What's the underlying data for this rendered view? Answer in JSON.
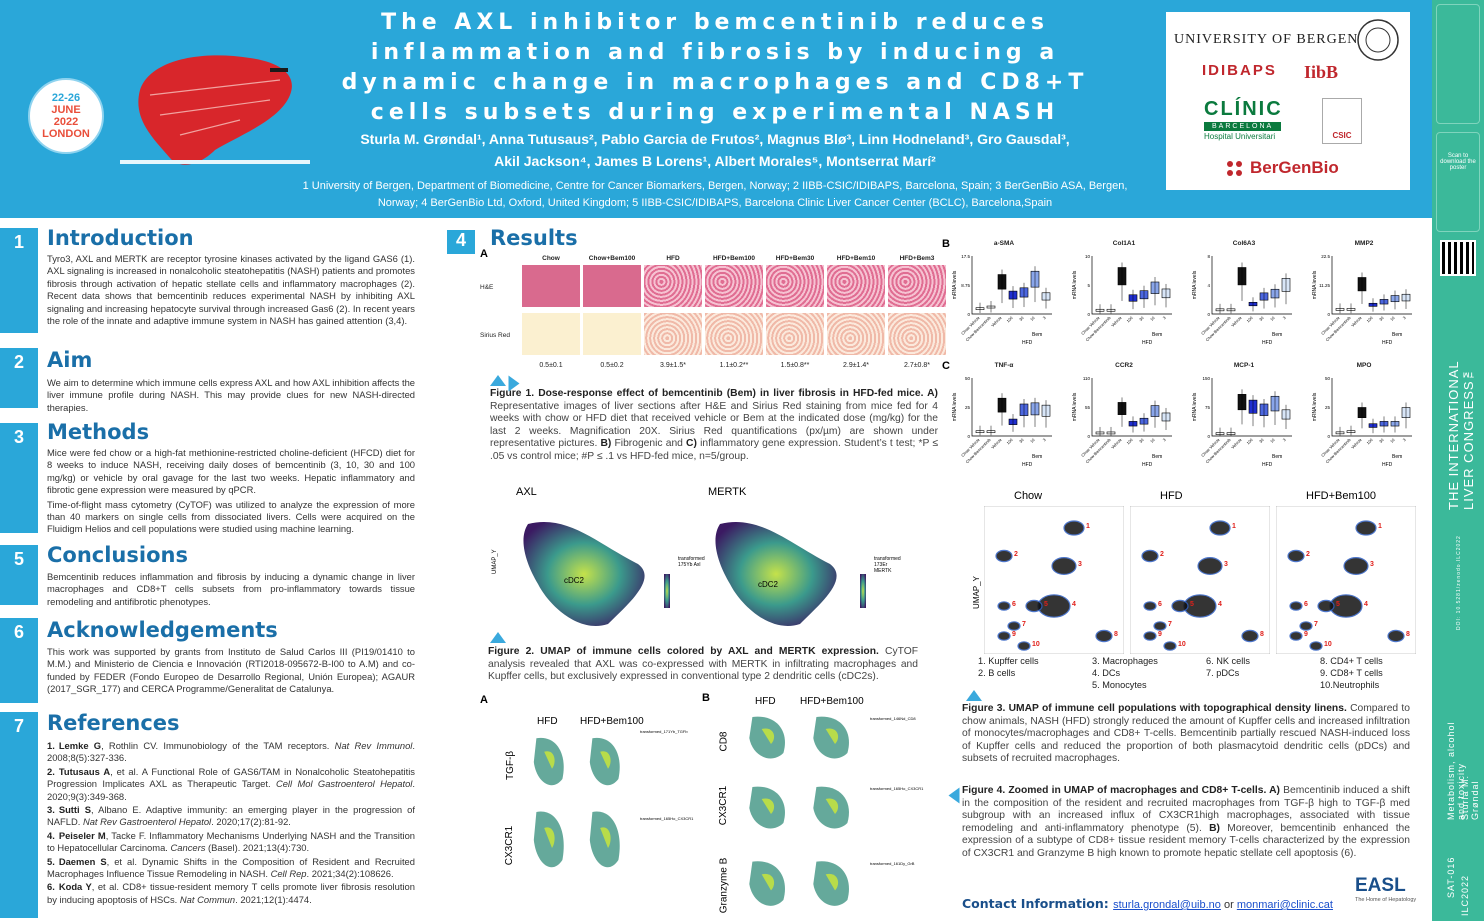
{
  "header": {
    "title_lines": [
      "The AXL inhibitor bemcentinib reduces",
      "inflammation and fibrosis by inducing a",
      "dynamic change in macrophages and CD8+T",
      "cells subsets during experimental NASH"
    ],
    "authors_line1": "Sturla M. Grøndal¹, Anna Tutusaus², Pablo Garcia de Frutos², Magnus Blø³, Linn Hodneland³, Gro Gausdal³,",
    "authors_line2": "Akil Jackson⁴, James B Lorens¹, Albert Morales⁵,  Montserrat Marí²",
    "affiliations": "1 University of Bergen, Department of Biomedicine, Centre for Cancer Biomarkers, Bergen, Norway;  2 IIBB-CSIC/IDIBAPS, Barcelona, Spain; 3 BerGenBio ASA, Bergen, Norway; 4 BerGenBio Ltd, Oxford, United Kingdom; 5 IIBB-CSIC/IDIBAPS, Barcelona Clinic Liver Cancer Center (BCLC), Barcelona,Spain",
    "conference": {
      "dates": "22-26",
      "month_year": "JUNE\n2022",
      "city": "LONDON",
      "month": "JUNE",
      "year": "2022"
    }
  },
  "logos": {
    "uib": "UNIVERSITY OF BERGEN",
    "idibaps": "IDIBAPS",
    "iibb": "IibB",
    "clinic": "CLÍNIC",
    "clinic_sub": "BARCELONA",
    "clinic_sub2": "Hospital Universitari",
    "csic": "CSIC",
    "bergenbio": "BerGenBio"
  },
  "right_strip": {
    "scan": "Scan to download the poster",
    "congress": "THE INTERNATIONAL LIVER CONGRESS™",
    "doi": "DOI: 10.5281/zenodo.ILC2022",
    "topic": "Metabolism, alcohol and toxicity",
    "author": "Sturla M. Grøndal",
    "code": "SAT-016",
    "ilc": "ILC2022"
  },
  "sections": [
    {
      "num": "1",
      "title": "Introduction",
      "body": "Tyro3, AXL and MERTK are receptor tyrosine kinases activated by the ligand GAS6 (1). AXL signaling is increased in nonalcoholic steatohepatitis (NASH) patients and promotes fibrosis through activation of hepatic stellate cells and inflammatory macrophages (2). Recent data shows that bemcentinib reduces experimental NASH by inhibiting AXL signaling and increasing hepatocyte survival through increased Gas6 (2). In recent years the role of the innate and adaptive immune system in NASH has gained attention (3,4)."
    },
    {
      "num": "2",
      "title": "Aim",
      "body": "We aim to determine which immune cells express AXL and how AXL inhibition affects the liver immune profile during NASH. This may provide clues for new NASH-directed therapies."
    },
    {
      "num": "3",
      "title": "Methods",
      "body": "Mice were fed chow or a high-fat methionine-restricted choline-deficient (HFCD) diet for 8 weeks to induce NASH, receiving daily doses of bemcentinib (3, 10, 30 and 100 mg/kg) or vehicle by oral gavage for the last two weeks. Hepatic inflammatory and fibrotic gene expression were measured by qPCR.",
      "body2": "Time-of-flight mass cytometry (CyTOF) was utilized to analyze the expression of more than 40 markers on single cells from dissociated livers. Cells were acquired on the Fluidigm Helios and cell populations were studied using machine learning."
    },
    {
      "num": "5",
      "title": "Conclusions",
      "body": "Bemcentinib reduces inflammation and fibrosis by inducing a dynamic change in liver macrophages and CD8+T cells subsets from pro-inflammatory towards tissue remodeling and antifibrotic phenotypes."
    },
    {
      "num": "6",
      "title": "Acknowledgements",
      "body": "This work was supported by grants from Instituto de Salud Carlos III (PI19/01410 to M.M.) and Ministerio de Ciencia e Innovación (RTI2018-095672-B-I00 to A.M) and co-funded by FEDER (Fondo Europeo de Desarrollo Regional, Unión Europea); AGAUR (2017_SGR_177) and CERCA Programme/Generalitat de Catalunya."
    },
    {
      "num": "7",
      "title": "References"
    }
  ],
  "references": [
    {
      "n": "1.",
      "auth": "Lemke G",
      "rest": ", Rothlin CV. Immunobiology of the TAM receptors. ",
      "jour": "Nat Rev Immunol",
      "tail": ". 2008;8(5):327-336."
    },
    {
      "n": "2.",
      "auth": "Tutusaus A",
      "rest": ", et al. A Functional Role of GAS6/TAM in Nonalcoholic Steatohepatitis Progression Implicates AXL as Therapeutic Target. ",
      "jour": "Cell Mol Gastroenterol Hepatol",
      "tail": ". 2020;9(3):349-368."
    },
    {
      "n": "3.",
      "auth": "Sutti S",
      "rest": ", Albano E. Adaptive immunity: an emerging player in the progression of NAFLD. ",
      "jour": "Nat Rev Gastroenterol Hepatol",
      "tail": ". 2020;17(2):81-92."
    },
    {
      "n": "4.",
      "auth": "Peiseler M",
      "rest": ", Tacke F. Inflammatory Mechanisms Underlying NASH and the Transition to Hepatocellular Carcinoma. ",
      "jour": "Cancers",
      "tail": " (Basel). 2021;13(4):730."
    },
    {
      "n": "5.",
      "auth": "Daemen S",
      "rest": ", et al. Dynamic Shifts in the Composition of Resident and Recruited Macrophages Influence Tissue Remodeling in NASH. ",
      "jour": "Cell Rep",
      "tail": ". 2021;34(2):108626."
    },
    {
      "n": "6.",
      "auth": "Koda Y",
      "rest": ", et al. CD8+ tissue-resident memory T cells promote liver fibrosis resolution by inducing apoptosis of HSCs. ",
      "jour": "Nat Commun",
      "tail": ". 2021;12(1):4474."
    }
  ],
  "results": {
    "num": "4",
    "title": "Results",
    "fig1a": {
      "letter": "A",
      "columns": [
        "Chow",
        "Chow+Bem100",
        "HFD",
        "HFD+Bem100",
        "HFD+Bem30",
        "HFD+Bem10",
        "HFD+Bem3"
      ],
      "rows": [
        "H&E",
        "Sirius Red"
      ],
      "quant": [
        "0.5±0.1",
        "0.5±0.2",
        "3.9±1.5*",
        "1.1±0.2**",
        "1.5±0.8**",
        "2.9±1.4*",
        "2.7±0.8*"
      ]
    },
    "fig1_caption": {
      "bold": "Figure 1. Dose-response effect of bemcentinib (Bem) in liver fibrosis in HFD-fed mice. A)",
      "text": " Representative images of liver sections after H&E and Sirius Red staining from mice fed for 4 weeks with chow or HFD diet that received vehicle or Bem at the indicated dose (mg/kg) for the last 2 weeks. Magnification 20X. Sirius Red quantifications (px/µm) are shown under representative pictures. ",
      "b2": "B)",
      "t2": " Fibrogenic and ",
      "b3": "C)",
      "t3": " inflammatory gene expression. Student’s t test; *P ≤ .05 vs control mice; #P ≤ .1 vs HFD-fed mice, n=5/group."
    },
    "fig1bc": {
      "letter_b": "B",
      "letter_c": "C",
      "ylabel": "mRNA levels",
      "xlabels": [
        "Chow Vehicle",
        "Chow Bemcentinib",
        "Vehicle",
        "100",
        "30",
        "10",
        "3"
      ],
      "group_bem": "Bem",
      "group_hfd": "HFD"
    },
    "fig2": {
      "labels": [
        "AXL",
        "MERTK"
      ],
      "cluster": "cDC2",
      "axis": "UMAP_Y",
      "legend_axl": "transformed 175Yb Axl",
      "legend_mertk": "transformed 173Er MERTK"
    },
    "fig2_caption": {
      "bold": "Figure 2. UMAP of immune cells colored by AXL and MERTK expression.",
      "text": " CyTOF analysis revealed that AXL was co-expressed with MERTK in infiltrating macrophages and Kupffer cells, but exclusively expressed in conventional type 2 dendritic cells (cDC2s)."
    },
    "fig3": {
      "headers": [
        "Chow",
        "HFD",
        "HFD+Bem100"
      ],
      "axis": "UMAP_Y",
      "cluster_numbers": [
        "1",
        "2",
        "3",
        "4",
        "5",
        "6",
        "7",
        "8",
        "9",
        "10"
      ],
      "legend": [
        [
          "1.  Kupffer cells",
          "3.  Macrophages",
          "6.  NK cells",
          "8.  CD4+ T cells"
        ],
        [
          "2.  B cells",
          "4.  DCs",
          "7.  pDCs",
          "9.  CD8+ T cells"
        ],
        [
          "",
          "5.  Monocytes",
          "",
          "10.Neutrophils"
        ]
      ]
    },
    "fig3_caption": {
      "bold": "Figure 3. UMAP of immune cell populations with topographical density linens.",
      "text": " Compared to chow animals, NASH (HFD) strongly reduced the amount of Kupffer cells and increased infiltration of monocytes/macrophages and CD8+ T-cells. Bemcentinib partially rescued NASH-induced loss of Kupffer cells and reduced the proportion of both plasmacytoid dendritic cells (pDCs) and subsets of recruited macrophages."
    },
    "fig4": {
      "letter_a": "A",
      "letter_b": "B",
      "headers": [
        "HFD",
        "HFD+Bem100"
      ],
      "rows_a": [
        "TGF-β",
        "CX3CR1"
      ],
      "rows_b": [
        "CD8",
        "CX3CR1",
        "Granzyme B"
      ],
      "legends_a": [
        "transformed_171Yb_TGFb",
        "transformed_165Ho_CX3CR1"
      ],
      "legends_b": [
        "transformed_146Nd_CD8",
        "transformed_165Ho_CX3CR1",
        "transformed_161Dy_GrB"
      ]
    },
    "fig4_caption": {
      "bold": "Figure 4. Zoomed in UMAP  of macrophages and CD8+ T-cells. A)",
      "text": " Bemcentinib induced a shift in the composition of the resident and recruited macrophages from TGF-β high to TGF-β med subgroup with an increased influx of CX3CR1high macrophages, associated with tissue remodeling and anti-inflammatory phenotype (5). ",
      "b2": "B)",
      "t2": " Moreover, bemcentinib enhanced the expression of a subtype of CD8+ tissue resident memory T-cells characterized by the expression of CX3CR1 and Granzyme B high known to promote hepatic stellate cell apoptosis (6)."
    },
    "contact": {
      "label": "Contact Information:",
      "email1": "sturla.grondal@uib.no",
      "or": " or ",
      "email2": "monmari@clinic.cat"
    },
    "easl": "EASL",
    "easl_sub": "The Home of Hepatology"
  },
  "chart_data": [
    {
      "type": "bar",
      "title": "a-SMA",
      "categories": [
        "Chow Vehicle",
        "Chow Bemcentinib",
        "Vehicle",
        "100",
        "30",
        "10",
        "3"
      ],
      "values": [
        1.0,
        1.5,
        11.0,
        6.0,
        7.0,
        12.0,
        5.5
      ],
      "ylim": [
        0,
        17.5
      ],
      "ylabel": "mRNA levels"
    },
    {
      "type": "bar",
      "title": "Col1A1",
      "categories": [
        "Chow Vehicle",
        "Chow Bemcentinib",
        "Vehicle",
        "100",
        "30",
        "10",
        "3"
      ],
      "values": [
        0.3,
        0.3,
        7.5,
        2.8,
        3.5,
        5.0,
        3.8
      ],
      "ylim": [
        0,
        10
      ],
      "ylabel": "mRNA levels"
    },
    {
      "type": "bar",
      "title": "Col6A3",
      "categories": [
        "Chow Vehicle",
        "Chow Bemcentinib",
        "Vehicle",
        "100",
        "30",
        "10",
        "3"
      ],
      "values": [
        0.3,
        0.3,
        6.0,
        1.2,
        2.5,
        3.0,
        4.5
      ],
      "ylim": [
        0,
        8
      ],
      "ylabel": "mRNA levels"
    },
    {
      "type": "bar",
      "title": "MMP2",
      "categories": [
        "Chow Vehicle",
        "Chow Bemcentinib",
        "Vehicle",
        "100",
        "30",
        "10",
        "3"
      ],
      "values": [
        1.0,
        1.0,
        13.0,
        3.0,
        4.5,
        6.0,
        6.5
      ],
      "ylim": [
        0,
        22.5
      ],
      "ylabel": "mRNA levels"
    },
    {
      "type": "bar",
      "title": "TNF-α",
      "categories": [
        "Chow Vehicle",
        "Chow Bemcentinib",
        "Vehicle",
        "100",
        "30",
        "10",
        "3"
      ],
      "values": [
        2,
        2,
        30,
        12,
        25,
        26,
        24
      ],
      "ylim": [
        0,
        50
      ],
      "ylabel": "mRNA levels"
    },
    {
      "type": "bar",
      "title": "CCR2",
      "categories": [
        "Chow Vehicle",
        "Chow Bemcentinib",
        "Vehicle",
        "100",
        "30",
        "10",
        "3"
      ],
      "values": [
        2,
        2,
        58,
        22,
        28,
        52,
        38
      ],
      "ylim": [
        0,
        110
      ],
      "ylabel": "mRNA levels"
    },
    {
      "type": "bar",
      "title": "MCP-1",
      "categories": [
        "Chow Vehicle",
        "Chow Bemcentinib",
        "Vehicle",
        "100",
        "30",
        "10",
        "3"
      ],
      "values": [
        1,
        1,
        100,
        85,
        75,
        95,
        60
      ],
      "ylim": [
        0,
        150
      ],
      "ylabel": "mRNA levels"
    },
    {
      "type": "bar",
      "title": "MPO",
      "categories": [
        "Chow Vehicle",
        "Chow Bemcentinib",
        "Vehicle",
        "100",
        "30",
        "10",
        "3"
      ],
      "values": [
        1,
        2,
        22,
        8,
        10,
        10,
        22
      ],
      "ylim": [
        0,
        50
      ],
      "ylabel": "mRNA levels"
    }
  ]
}
